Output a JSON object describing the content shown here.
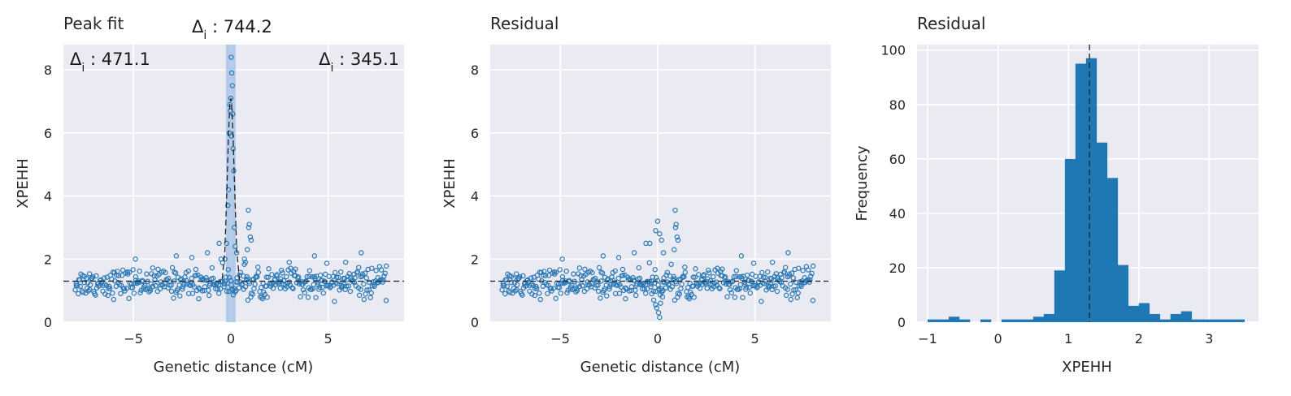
{
  "colors": {
    "axes_bg": "#eaeaf2",
    "grid": "#ffffff",
    "points": "#2878b5",
    "bars": "#1f77b4",
    "band": "#a9c6e6",
    "ref_line": "#222222"
  },
  "chart_data": [
    {
      "type": "scatter",
      "title": "Peak fit",
      "xlabel": "Genetic distance (cM)",
      "ylabel": "XPEHH",
      "xlim": [
        -8.6,
        8.9
      ],
      "ylim": [
        0,
        8.8
      ],
      "xticks": [
        -5,
        0,
        5
      ],
      "yticks": [
        0,
        2,
        4,
        6,
        8
      ],
      "grid": true,
      "annotations": {
        "center": "744.2",
        "left": "471.1",
        "right": "345.1"
      },
      "peak_band_x": [
        -0.25,
        0.25
      ],
      "baseline": 1.3,
      "fit_line": [
        [
          -8.6,
          1.3
        ],
        [
          -0.45,
          1.3
        ],
        [
          -0.3,
          2.3
        ],
        [
          -0.2,
          4.2
        ],
        [
          -0.12,
          5.9
        ],
        [
          -0.05,
          6.9
        ],
        [
          0,
          7.1
        ],
        [
          0.05,
          6.8
        ],
        [
          0.12,
          5.8
        ],
        [
          0.2,
          4.2
        ],
        [
          0.3,
          2.3
        ],
        [
          0.45,
          1.3
        ],
        [
          8.9,
          1.3
        ]
      ],
      "highlight_points": [
        [
          0.02,
          8.4
        ],
        [
          0.05,
          7.9
        ],
        [
          0.08,
          7.5
        ],
        [
          0.0,
          7.1
        ],
        [
          -0.05,
          6.9
        ],
        [
          -0.02,
          6.7
        ],
        [
          0.1,
          6.6
        ],
        [
          -0.08,
          6.0
        ],
        [
          0.04,
          5.9
        ],
        [
          0.12,
          5.5
        ],
        [
          0.15,
          4.8
        ],
        [
          -0.12,
          4.2
        ],
        [
          -0.15,
          3.7
        ],
        [
          0.18,
          3.0
        ],
        [
          0.22,
          2.4
        ],
        [
          -0.22,
          2.5
        ],
        [
          -0.3,
          2.0
        ],
        [
          0.3,
          2.2
        ],
        [
          0.9,
          3.55
        ],
        [
          0.95,
          3.1
        ],
        [
          0.92,
          3.0
        ],
        [
          1.0,
          2.7
        ],
        [
          1.05,
          2.6
        ],
        [
          0.85,
          2.3
        ],
        [
          0.7,
          2.0
        ],
        [
          0.75,
          1.9
        ],
        [
          -0.6,
          2.5
        ],
        [
          -0.5,
          2.0
        ],
        [
          -1.2,
          2.2
        ],
        [
          -2.0,
          2.05
        ],
        [
          -2.8,
          2.1
        ],
        [
          -4.9,
          2.0
        ],
        [
          4.3,
          2.1
        ],
        [
          6.7,
          2.2
        ],
        [
          5.9,
          1.9
        ],
        [
          3.0,
          1.9
        ]
      ]
    },
    {
      "type": "scatter",
      "title": "Residual",
      "xlabel": "Genetic distance (cM)",
      "ylabel": "XPEHH",
      "xlim": [
        -8.6,
        8.9
      ],
      "ylim": [
        0,
        8.8
      ],
      "xticks": [
        -5,
        0,
        5
      ],
      "yticks": [
        0,
        2,
        4,
        6,
        8
      ],
      "grid": true,
      "baseline": 1.3,
      "highlight_points": [
        [
          0.9,
          3.55
        ],
        [
          0.95,
          3.1
        ],
        [
          0.92,
          3.0
        ],
        [
          0.0,
          3.2
        ],
        [
          -0.1,
          2.9
        ],
        [
          0.1,
          2.8
        ],
        [
          -0.4,
          2.5
        ],
        [
          0.2,
          2.6
        ],
        [
          1.0,
          2.7
        ],
        [
          1.05,
          2.6
        ],
        [
          0.85,
          2.3
        ],
        [
          0.3,
          2.2
        ],
        [
          -0.6,
          2.5
        ],
        [
          -1.2,
          2.2
        ],
        [
          -2.0,
          2.05
        ],
        [
          -2.8,
          2.1
        ],
        [
          -4.9,
          2.0
        ],
        [
          4.3,
          2.1
        ],
        [
          6.7,
          2.2
        ],
        [
          5.9,
          1.9
        ],
        [
          -0.2,
          0.7
        ],
        [
          -0.1,
          0.55
        ],
        [
          0.05,
          0.3
        ],
        [
          0.15,
          0.6
        ],
        [
          0.25,
          0.8
        ],
        [
          -0.3,
          0.9
        ],
        [
          0.1,
          0.15
        ],
        [
          -0.05,
          0.45
        ]
      ]
    },
    {
      "type": "bar",
      "title": "Residual",
      "xlabel": "XPEHH",
      "ylabel": "Frequency",
      "xlim": [
        -1.15,
        3.7
      ],
      "ylim": [
        0,
        102
      ],
      "xticks": [
        -1,
        0,
        1,
        2,
        3
      ],
      "yticks": [
        0,
        20,
        40,
        60,
        80,
        100
      ],
      "grid": true,
      "bin_edges": [
        -1.0,
        -0.85,
        -0.7,
        -0.55,
        -0.4,
        -0.25,
        -0.1,
        0.05,
        0.2,
        0.35,
        0.5,
        0.65,
        0.8,
        0.95,
        1.1,
        1.25,
        1.4,
        1.55,
        1.7,
        1.85,
        2.0,
        2.15,
        2.3,
        2.45,
        2.6,
        2.75,
        2.9,
        3.05,
        3.2,
        3.35,
        3.5
      ],
      "values": [
        1,
        1,
        2,
        1,
        0,
        1,
        0,
        1,
        1,
        1,
        2,
        3,
        19,
        60,
        95,
        97,
        66,
        53,
        21,
        6,
        7,
        3,
        1,
        3,
        4,
        1,
        1,
        1,
        1,
        1
      ],
      "vline_x": 1.3
    }
  ]
}
